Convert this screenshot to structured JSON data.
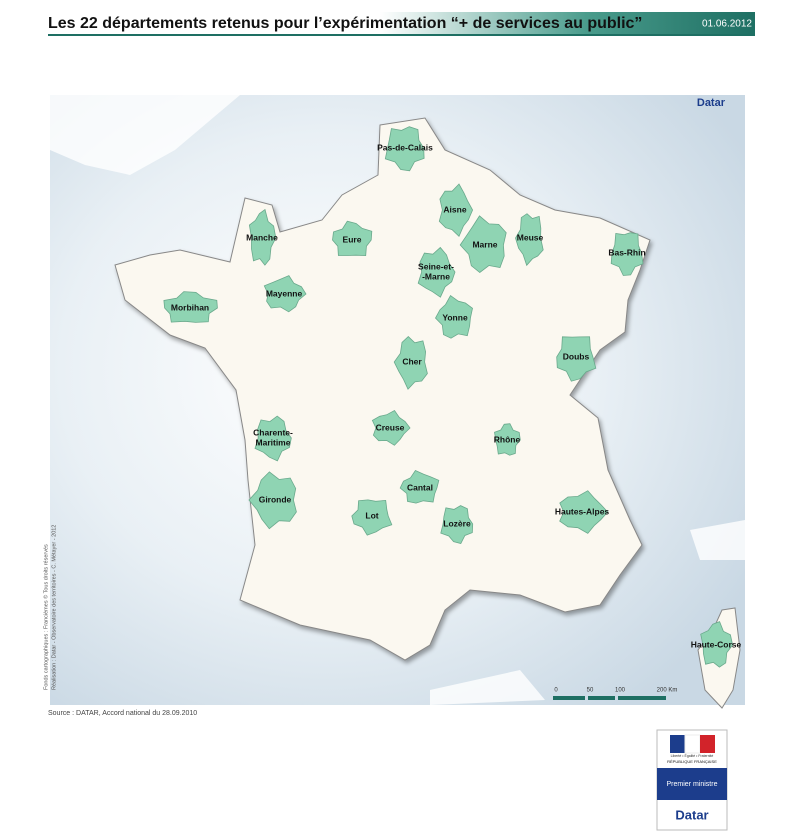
{
  "header": {
    "title": "Les 22 départements retenus pour l’expérimentation “+ de services au public”",
    "date": "01.06.2012"
  },
  "map": {
    "brand": "Datar",
    "departments": [
      [
        "Pas-de-Calais"
      ],
      [
        "Aisne"
      ],
      [
        "Manche"
      ],
      [
        "Eure"
      ],
      [
        "Marne"
      ],
      [
        "Meuse"
      ],
      [
        "Bas-Rhin"
      ],
      [
        "Seine-et-",
        "-Marne"
      ],
      [
        "Mayenne"
      ],
      [
        "Morbihan"
      ],
      [
        "Yonne"
      ],
      [
        "Cher"
      ],
      [
        "Doubs"
      ],
      [
        "Charente-",
        "Maritime"
      ],
      [
        "Creuse"
      ],
      [
        "Rhône"
      ],
      [
        "Cantal"
      ],
      [
        "Gironde"
      ],
      [
        "Lot"
      ],
      [
        "Lozère"
      ],
      [
        "Hautes-Alpes"
      ],
      [
        "Haute-Corse"
      ]
    ],
    "scale": [
      "0",
      "50",
      "100",
      "200 Km"
    ]
  },
  "credits": [
    "Fonds cartographiques : Francièmes © Tous droits réservés",
    "Réalisation : Datar - Observatoire des territoires - C. Métayer - 2012"
  ],
  "source": "Source : DATAR, Accord national du 28.09.2010",
  "logo": {
    "motto": "Liberté • Égalité • Fraternité",
    "republic": "RÉPUBLIQUE FRANÇAISE",
    "ministry": "Premier ministre",
    "brand": "Datar"
  }
}
